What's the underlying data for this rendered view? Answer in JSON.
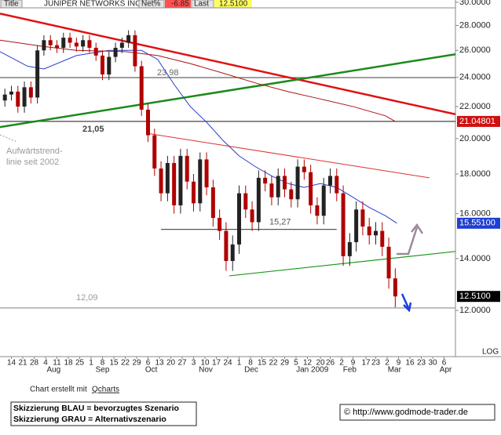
{
  "header": {
    "title_label": "Title",
    "name": "JUNIPER NETWORKS INC",
    "net_label": "Net%",
    "net": -6.85,
    "last_label": "Last",
    "last": "12.5100"
  },
  "chart_data": {
    "type": "candlestick",
    "log_scale": true,
    "ylim": [
      10.46,
      30.2
    ],
    "xlim": [
      -7,
      273
    ],
    "yticks": [
      {
        "value": 12,
        "label": "12.0000"
      },
      {
        "value": 14,
        "label": "14.0000"
      },
      {
        "value": 16,
        "label": "16.0000"
      },
      {
        "value": 18,
        "label": "18.0000"
      },
      {
        "value": 20,
        "label": "20.0000"
      },
      {
        "value": 22,
        "label": "22.0000"
      },
      {
        "value": 24,
        "label": "24.0000"
      },
      {
        "value": 26,
        "label": "26.0000"
      },
      {
        "value": 28,
        "label": "28.0000"
      },
      {
        "value": 30,
        "label": "30.0000"
      }
    ],
    "xticks": [
      {
        "value": 0,
        "label": "14"
      },
      {
        "value": 7,
        "label": "21"
      },
      {
        "value": 14,
        "label": "28"
      },
      {
        "value": 21,
        "label": "4"
      },
      {
        "value": 28,
        "label": "11"
      },
      {
        "value": 35,
        "label": "18"
      },
      {
        "value": 42,
        "label": "25"
      },
      {
        "value": 49,
        "label": "1"
      },
      {
        "value": 56,
        "label": "8"
      },
      {
        "value": 63,
        "label": "15"
      },
      {
        "value": 70,
        "label": "22"
      },
      {
        "value": 77,
        "label": "29"
      },
      {
        "value": 84,
        "label": "6"
      },
      {
        "value": 91,
        "label": "13"
      },
      {
        "value": 98,
        "label": "20"
      },
      {
        "value": 105,
        "label": "27"
      },
      {
        "value": 112,
        "label": "3"
      },
      {
        "value": 119,
        "label": "10"
      },
      {
        "value": 126,
        "label": "17"
      },
      {
        "value": 133,
        "label": "24"
      },
      {
        "value": 140,
        "label": "1"
      },
      {
        "value": 147,
        "label": "8"
      },
      {
        "value": 154,
        "label": "15"
      },
      {
        "value": 161,
        "label": "22"
      },
      {
        "value": 168,
        "label": "29"
      },
      {
        "value": 175,
        "label": "5"
      },
      {
        "value": 182,
        "label": "12"
      },
      {
        "value": 190,
        "label": "20"
      },
      {
        "value": 196,
        "label": "26"
      },
      {
        "value": 203,
        "label": "2"
      },
      {
        "value": 210,
        "label": "9"
      },
      {
        "value": 218,
        "label": "17"
      },
      {
        "value": 224,
        "label": "23"
      },
      {
        "value": 231,
        "label": "2"
      },
      {
        "value": 238,
        "label": "9"
      },
      {
        "value": 245,
        "label": "16"
      },
      {
        "value": 252,
        "label": "23"
      },
      {
        "value": 259,
        "label": "30"
      },
      {
        "value": 266,
        "label": "6"
      }
    ],
    "month_ticks": [
      {
        "value": 26,
        "label": "Aug"
      },
      {
        "value": 56,
        "label": "Sep"
      },
      {
        "value": 86,
        "label": "Oct"
      },
      {
        "value": 119.5,
        "label": "Nov"
      },
      {
        "value": 147.5,
        "label": "Dec"
      },
      {
        "value": 185,
        "label": "Jan 2009"
      },
      {
        "value": 208,
        "label": "Feb"
      },
      {
        "value": 235.5,
        "label": "Mar"
      },
      {
        "value": 267,
        "label": "Apr"
      }
    ],
    "scale_label": "LOG",
    "candles": {
      "up_color": "#222222",
      "down_color": "#b00000",
      "last_label": "12.5100",
      "label_color": "#000000",
      "x": [
        -4,
        0,
        4,
        8,
        12,
        16,
        20,
        24,
        28,
        32,
        36,
        40,
        44,
        48,
        52,
        56,
        60,
        64,
        68,
        72,
        76,
        80,
        84,
        88,
        92,
        96,
        100,
        104,
        108,
        112,
        116,
        120,
        124,
        128,
        132,
        136,
        140,
        144,
        148,
        152,
        156,
        160,
        164,
        168,
        172,
        176,
        180,
        184,
        188,
        192,
        196,
        200,
        204,
        208,
        212,
        216,
        220,
        224,
        228,
        232,
        236
      ],
      "open": [
        22.4,
        22.8,
        23.0,
        22.0,
        23.3,
        22.6,
        26.0,
        26.8,
        26.4,
        26.2,
        27.0,
        26.6,
        26.3,
        26.8,
        26.2,
        25.6,
        24.2,
        25.5,
        26.2,
        26.6,
        27.2,
        24.8,
        21.8,
        20.2,
        18.3,
        17.0,
        18.6,
        16.4,
        19.0,
        17.6,
        16.5,
        18.8,
        17.3,
        15.8,
        15.2,
        13.9,
        14.6,
        17.0,
        16.2,
        15.6,
        17.8,
        17.5,
        16.8,
        17.9,
        17.2,
        16.7,
        18.4,
        18.1,
        16.4,
        15.9,
        17.4,
        17.9,
        17.0,
        14.1,
        14.7,
        16.2,
        15.4,
        15.0,
        15.2,
        14.5,
        13.2
      ],
      "high": [
        23.2,
        23.4,
        23.4,
        23.7,
        23.7,
        26.4,
        27.2,
        27.2,
        26.8,
        27.4,
        27.4,
        27.0,
        27.2,
        27.2,
        26.6,
        26.0,
        25.9,
        26.6,
        27.0,
        27.6,
        27.6,
        25.2,
        22.2,
        20.6,
        18.7,
        19.0,
        19.0,
        19.4,
        19.4,
        18.0,
        19.2,
        19.2,
        17.7,
        16.2,
        15.6,
        15.0,
        17.4,
        17.4,
        16.6,
        18.2,
        18.2,
        17.9,
        18.3,
        18.3,
        17.6,
        18.8,
        18.8,
        18.5,
        16.8,
        17.8,
        18.3,
        18.3,
        17.4,
        15.1,
        16.6,
        16.6,
        15.8,
        15.6,
        15.6,
        14.9,
        13.6
      ],
      "low": [
        22.0,
        22.4,
        21.6,
        21.6,
        22.2,
        22.2,
        25.6,
        26.0,
        25.8,
        25.8,
        26.2,
        25.9,
        25.9,
        25.8,
        25.2,
        23.8,
        23.8,
        25.1,
        25.8,
        26.2,
        24.4,
        21.4,
        19.8,
        17.9,
        16.6,
        16.6,
        16.0,
        16.0,
        17.2,
        16.1,
        16.1,
        16.9,
        15.4,
        14.8,
        13.5,
        13.5,
        14.2,
        15.8,
        15.2,
        15.2,
        17.1,
        16.4,
        16.4,
        16.8,
        16.3,
        16.3,
        17.7,
        16.0,
        15.5,
        15.5,
        17.0,
        16.6,
        13.7,
        13.7,
        14.3,
        15.0,
        14.6,
        14.6,
        14.1,
        12.8,
        12.11
      ],
      "close": [
        22.8,
        23.0,
        22.0,
        23.3,
        22.6,
        26.0,
        26.8,
        26.4,
        26.2,
        27.0,
        26.6,
        26.3,
        26.8,
        26.2,
        25.6,
        24.2,
        25.5,
        26.2,
        26.6,
        27.2,
        24.8,
        21.8,
        20.2,
        18.3,
        17.0,
        18.6,
        16.4,
        19.0,
        17.6,
        16.5,
        18.8,
        17.3,
        15.8,
        15.2,
        13.9,
        14.6,
        17.0,
        16.2,
        15.6,
        17.8,
        17.5,
        16.8,
        17.9,
        17.2,
        16.7,
        18.4,
        18.1,
        16.4,
        15.9,
        17.4,
        17.9,
        17.0,
        14.1,
        14.7,
        16.2,
        15.4,
        15.0,
        15.2,
        14.5,
        13.2,
        12.51
      ]
    },
    "series": [
      {
        "color": "#2a3cc8",
        "label_color": "#1f3fd0",
        "last_label": "15.55100",
        "x": [
          -7,
          10,
          20,
          40,
          60,
          80,
          90,
          100,
          110,
          120,
          130,
          140,
          150,
          160,
          170,
          180,
          190,
          200,
          210,
          220,
          230,
          237
        ],
        "values": [
          25.9,
          24.8,
          24.6,
          25.6,
          26.0,
          26.0,
          25.3,
          23.5,
          22.0,
          21.0,
          19.9,
          19.0,
          18.4,
          17.9,
          17.5,
          17.3,
          17.5,
          17.3,
          16.8,
          16.3,
          15.9,
          15.551
        ]
      },
      {
        "color": "#b01010",
        "label_color": "#d01010",
        "last_label": "21.04801",
        "x": [
          -7,
          20,
          40,
          70,
          90,
          110,
          130,
          150,
          170,
          190,
          210,
          230,
          236
        ],
        "values": [
          26.8,
          26.3,
          26.0,
          25.9,
          25.6,
          25.0,
          24.3,
          23.6,
          23.0,
          22.5,
          22.0,
          21.4,
          21.04801
        ]
      }
    ],
    "trendlines": [
      {
        "x": [
          -7,
          273
        ],
        "values": [
          29.0,
          21.5
        ],
        "color": "#e01010",
        "width": 2.5
      },
      {
        "x": [
          -7,
          273
        ],
        "values": [
          20.7,
          25.7
        ],
        "color": "#1a8a1a",
        "width": 2.5
      },
      {
        "x": [
          84.7,
          257
        ],
        "values": [
          20.3,
          17.8
        ],
        "color": "#e03030",
        "width": 1
      },
      {
        "x": [
          134,
          273
        ],
        "values": [
          13.3,
          14.3
        ],
        "color": "#1a9a1a",
        "width": 1.2
      }
    ],
    "levels": [
      {
        "value": 23.98,
        "label": "23,98",
        "x": [
          -7,
          273
        ],
        "color": "#666666"
      },
      {
        "value": 21.05,
        "label": "21,05",
        "x": [
          -7,
          273
        ],
        "color": "#444444"
      },
      {
        "value": 15.27,
        "label": "15,27",
        "x": [
          92,
          200
        ],
        "color": "#555555"
      },
      {
        "value": 12.09,
        "label": "12,09",
        "x": [
          -7,
          273
        ],
        "color": "#999999"
      }
    ],
    "annotation": [
      "Aufwärtstrend-",
      "linie seit 2002"
    ]
  },
  "footer": {
    "credit": "Chart erstellt mit",
    "credit_link": "Qcharts",
    "legend": [
      "Skizzierung BLAU = bevorzugtes Szenario",
      "Skizzierung GRAU = Alternativszenario"
    ],
    "source": "© http://www.godmode-trader.de"
  }
}
